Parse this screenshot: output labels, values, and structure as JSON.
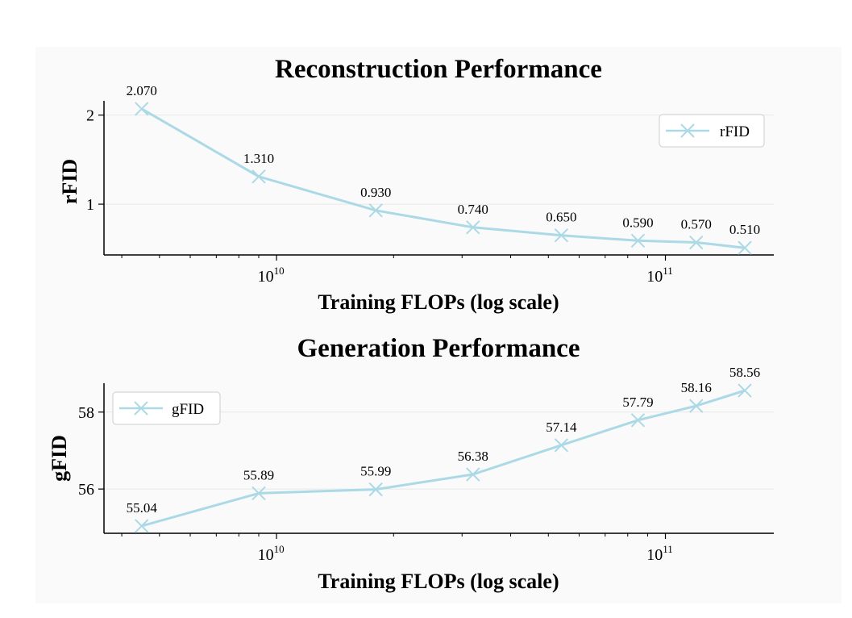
{
  "colors": {
    "line": "#abd9e6",
    "panel_bg": "#fafafa",
    "axis": "#000000",
    "grid": "#e8e8e8",
    "legend_border": "#cccccc"
  },
  "chart_data": [
    {
      "type": "line",
      "title": "Reconstruction Performance",
      "xlabel": "Training FLOPs (log scale)",
      "ylabel": "rFID",
      "xscale": "log",
      "xlim": [
        3600000000.0,
        190000000000.0
      ],
      "ylim": [
        0.43,
        2.16
      ],
      "xticks": [
        {
          "base": "10",
          "exp": "10",
          "value": 10000000000.0
        },
        {
          "base": "10",
          "exp": "11",
          "value": 100000000000.0
        }
      ],
      "yticks": [
        {
          "label": "1",
          "value": 1
        },
        {
          "label": "2",
          "value": 2
        }
      ],
      "grid": true,
      "legend": {
        "label": "rFID",
        "position": "upper right"
      },
      "x": [
        4500000000.0,
        9000000000.0,
        18000000000.0,
        32000000000.0,
        54000000000.0,
        85000000000.0,
        120000000000.0,
        160000000000.0
      ],
      "values": [
        2.07,
        1.31,
        0.93,
        0.74,
        0.65,
        0.59,
        0.57,
        0.51
      ],
      "labels": [
        "2.070",
        "1.310",
        "0.930",
        "0.740",
        "0.650",
        "0.590",
        "0.570",
        "0.510"
      ]
    },
    {
      "type": "line",
      "title": "Generation Performance",
      "xlabel": "Training FLOPs (log scale)",
      "ylabel": "gFID",
      "xscale": "log",
      "xlim": [
        3600000000.0,
        190000000000.0
      ],
      "ylim": [
        54.85,
        58.75
      ],
      "xticks": [
        {
          "base": "10",
          "exp": "10",
          "value": 10000000000.0
        },
        {
          "base": "10",
          "exp": "11",
          "value": 100000000000.0
        }
      ],
      "yticks": [
        {
          "label": "56",
          "value": 56
        },
        {
          "label": "58",
          "value": 58
        }
      ],
      "grid": true,
      "legend": {
        "label": "gFID",
        "position": "upper left"
      },
      "x": [
        4500000000.0,
        9000000000.0,
        18000000000.0,
        32000000000.0,
        54000000000.0,
        85000000000.0,
        120000000000.0,
        160000000000.0
      ],
      "values": [
        55.04,
        55.89,
        55.99,
        56.38,
        57.14,
        57.79,
        58.16,
        58.56
      ],
      "labels": [
        "55.04",
        "55.89",
        "55.99",
        "56.38",
        "57.14",
        "57.79",
        "58.16",
        "58.56"
      ]
    }
  ]
}
